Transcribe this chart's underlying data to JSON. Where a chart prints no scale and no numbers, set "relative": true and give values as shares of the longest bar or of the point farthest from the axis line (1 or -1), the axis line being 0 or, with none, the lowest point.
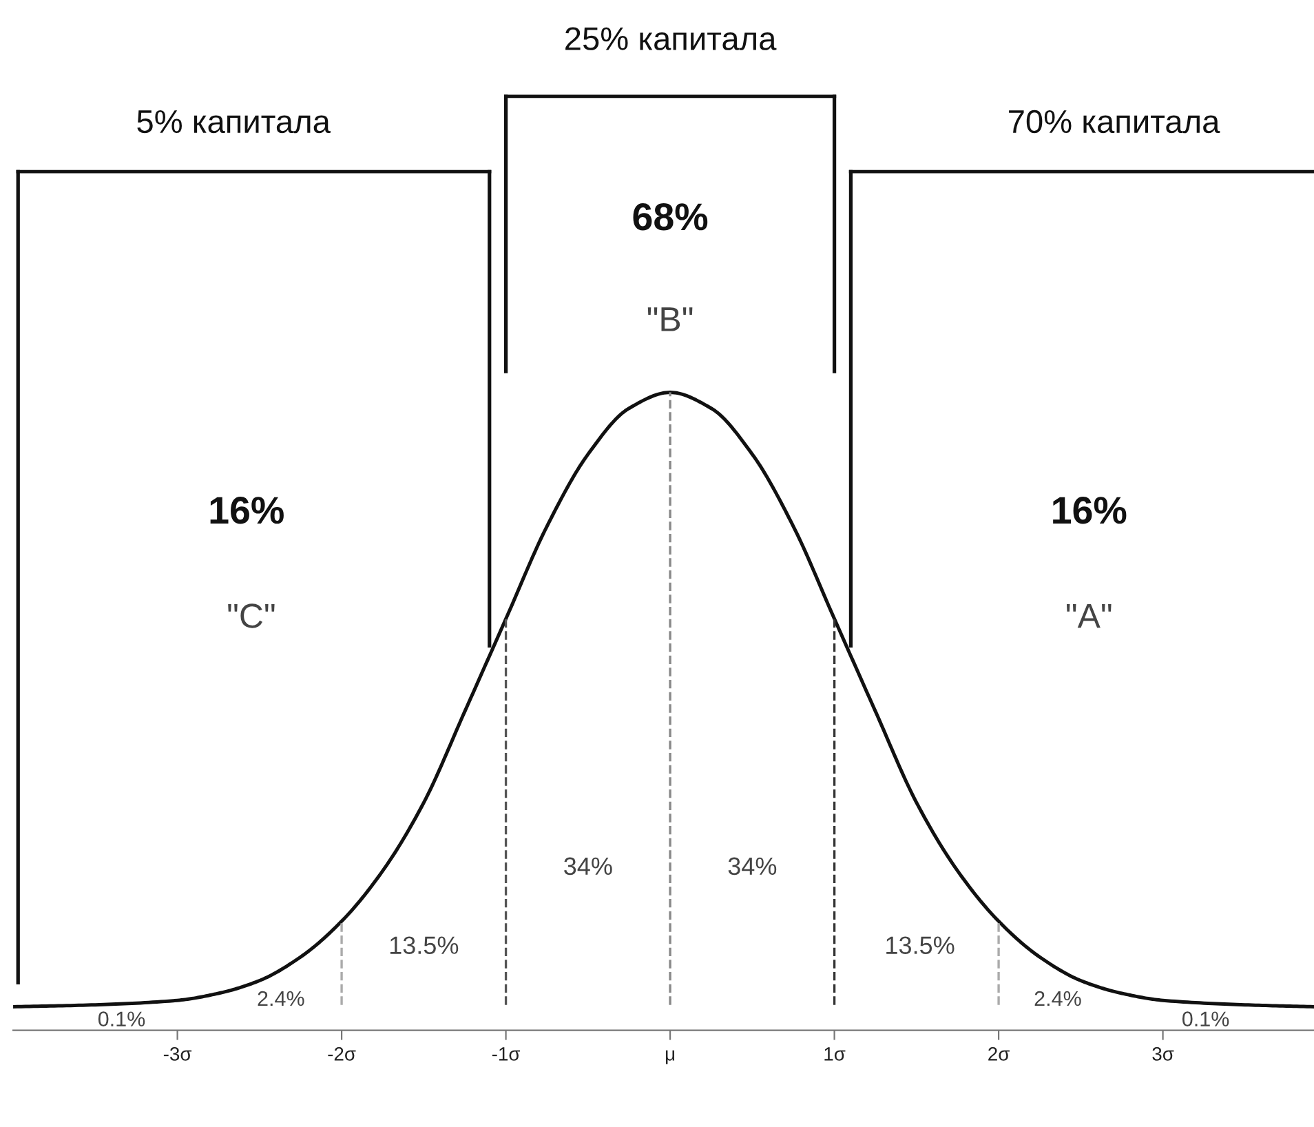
{
  "chart_data": {
    "type": "line",
    "relative": true,
    "series": [
      {
        "color": "#111111",
        "x": [
          -4,
          -3.5,
          -3,
          -2.75,
          -2.5,
          -2.25,
          -2,
          -1.75,
          -1.5,
          -1.25,
          -1,
          -0.75,
          -0.5,
          -0.25,
          0,
          0.25,
          0.5,
          0.75,
          1,
          1.25,
          1.5,
          1.75,
          2,
          2.25,
          2.5,
          2.75,
          3,
          3.5,
          3.92
        ],
        "values": [
          0.037,
          0.04,
          0.047,
          0.058,
          0.078,
          0.115,
          0.171,
          0.25,
          0.357,
          0.5,
          0.645,
          0.79,
          0.903,
          0.975,
          1,
          0.975,
          0.903,
          0.79,
          0.645,
          0.5,
          0.357,
          0.25,
          0.171,
          0.115,
          0.078,
          0.058,
          0.047,
          0.04,
          0.037
        ]
      }
    ],
    "xlim": [
      -4,
      3.92
    ],
    "xticks": [
      {
        "value": -3,
        "label": "-3σ"
      },
      {
        "value": -2,
        "label": "-2σ"
      },
      {
        "value": -1,
        "label": "-1σ"
      },
      {
        "value": 0,
        "label": "μ"
      },
      {
        "value": 1,
        "label": "1σ"
      },
      {
        "value": 2,
        "label": "2σ"
      },
      {
        "value": 3,
        "label": "3σ"
      }
    ],
    "ref_lines": [
      {
        "axis": "x",
        "value": -2,
        "color": "#aaaaaa",
        "line_style": "dashed"
      },
      {
        "axis": "x",
        "value": -1,
        "color": "#555555",
        "line_style": "dashed"
      },
      {
        "axis": "x",
        "value": 0,
        "color": "#888888",
        "line_style": "dashed"
      },
      {
        "axis": "x",
        "value": 1,
        "color": "#333333",
        "line_style": "dashed"
      },
      {
        "axis": "x",
        "value": 2,
        "color": "#aaaaaa",
        "line_style": "dashed"
      }
    ],
    "annotations": [
      "25% капитала",
      "5% капитала",
      "70% капитала",
      "68%",
      "\"B\"",
      "16%",
      "\"C\"",
      "16%",
      "\"A\"",
      "34%",
      "34%",
      "13.5%",
      "13.5%",
      "2.4%",
      "2.4%",
      "0.1%",
      "0.1%"
    ],
    "grid": false,
    "marker": "none",
    "line_style": "solid"
  }
}
